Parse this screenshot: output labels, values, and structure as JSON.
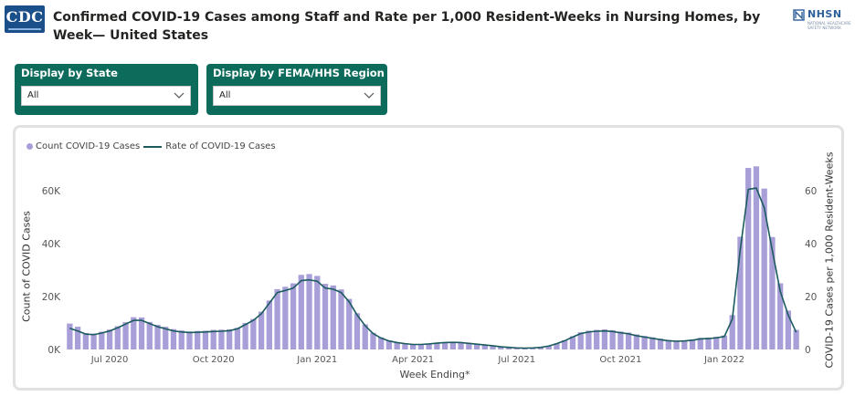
{
  "header": {
    "title": "Confirmed COVID-19 Cases among Staff and Rate per 1,000 Resident-Weeks in Nursing Homes, by Week— United States",
    "cdc_logo_text": "CDC",
    "nhsn_logo_text": "NHSN",
    "nhsn_logo_subtext": "NATIONAL HEALTHCARE SAFETY NETWORK"
  },
  "filters": {
    "state": {
      "label": "Display by State",
      "value": "All"
    },
    "region": {
      "label": "Display by FEMA/HHS Region",
      "value": "All"
    }
  },
  "colors": {
    "bar": "#a89fd8",
    "line": "#1b5b5e",
    "slicer": "#0d6b5c"
  },
  "chart_data": {
    "type": "bar",
    "legend": {
      "position": "top-left",
      "bar_label": "Count COVID-19 Cases",
      "line_label": "Rate of COVID-19 Cases"
    },
    "xlabel": "Week Ending*",
    "ylabel": "Count of COVID Cases",
    "y2label": "COVID-19 Cases per 1,000 Resident-Weeks",
    "ylim": [
      0,
      70000
    ],
    "y2lim": [
      0,
      70
    ],
    "y_ticks": [
      {
        "value": 0,
        "label": "0K"
      },
      {
        "value": 20000,
        "label": "20K"
      },
      {
        "value": 40000,
        "label": "40K"
      },
      {
        "value": 60000,
        "label": "60K"
      }
    ],
    "y2_ticks": [
      {
        "value": 0,
        "label": "0"
      },
      {
        "value": 20,
        "label": "20"
      },
      {
        "value": 40,
        "label": "40"
      },
      {
        "value": 60,
        "label": "60"
      }
    ],
    "x_ticks": [
      {
        "index": 5,
        "label": "Jul 2020"
      },
      {
        "index": 18,
        "label": "Oct 2020"
      },
      {
        "index": 31,
        "label": "Jan 2021"
      },
      {
        "index": 43,
        "label": "Apr 2021"
      },
      {
        "index": 56,
        "label": "Jul 2021"
      },
      {
        "index": 69,
        "label": "Oct 2021"
      },
      {
        "index": 82,
        "label": "Jan 2022"
      }
    ],
    "series": [
      {
        "name": "Count COVID-19 Cases",
        "type": "bar",
        "values": [
          9800,
          8600,
          6200,
          6000,
          6700,
          7500,
          8800,
          10300,
          12200,
          12100,
          10400,
          9300,
          8600,
          7700,
          7200,
          6800,
          7000,
          7100,
          7400,
          7500,
          7600,
          8200,
          10000,
          11500,
          14300,
          18500,
          22800,
          23700,
          25000,
          28200,
          28500,
          27800,
          24800,
          24200,
          22700,
          19100,
          13700,
          9500,
          6300,
          4600,
          3400,
          2700,
          2300,
          2000,
          2000,
          2200,
          2500,
          2800,
          2900,
          2800,
          2500,
          2200,
          1900,
          1500,
          1100,
          900,
          700,
          600,
          700,
          900,
          1400,
          2300,
          3500,
          5000,
          6500,
          7100,
          7400,
          7600,
          7300,
          6800,
          6400,
          5700,
          5100,
          4600,
          4100,
          3600,
          3400,
          3500,
          3800,
          4400,
          4500,
          4800,
          5300,
          13000,
          42600,
          68600,
          69200,
          60800,
          42500,
          25000,
          14700,
          7400
        ]
      },
      {
        "name": "Rate of COVID-19 Cases",
        "type": "line",
        "values": [
          8,
          7,
          5.8,
          5.6,
          6.2,
          7,
          8.2,
          9.6,
          11,
          11,
          9.8,
          8.6,
          7.8,
          7,
          6.6,
          6.4,
          6.5,
          6.6,
          6.8,
          6.9,
          7.1,
          7.8,
          9.4,
          11,
          13.5,
          17.5,
          21.5,
          22.3,
          23.2,
          26,
          26.3,
          25.8,
          23.2,
          22.8,
          21.5,
          18,
          13,
          9,
          6,
          4.3,
          3.2,
          2.6,
          2.2,
          1.9,
          1.9,
          2.1,
          2.4,
          2.6,
          2.7,
          2.6,
          2.3,
          2,
          1.7,
          1.4,
          1,
          0.8,
          0.6,
          0.5,
          0.6,
          0.8,
          1.3,
          2.2,
          3.3,
          4.7,
          6,
          6.6,
          6.9,
          7,
          6.8,
          6.3,
          5.9,
          5.2,
          4.7,
          4.2,
          3.7,
          3.3,
          3.1,
          3.2,
          3.5,
          4,
          4.1,
          4.4,
          4.9,
          11.5,
          38,
          60.5,
          61,
          53.5,
          37.5,
          22,
          13,
          6.5
        ]
      }
    ]
  }
}
